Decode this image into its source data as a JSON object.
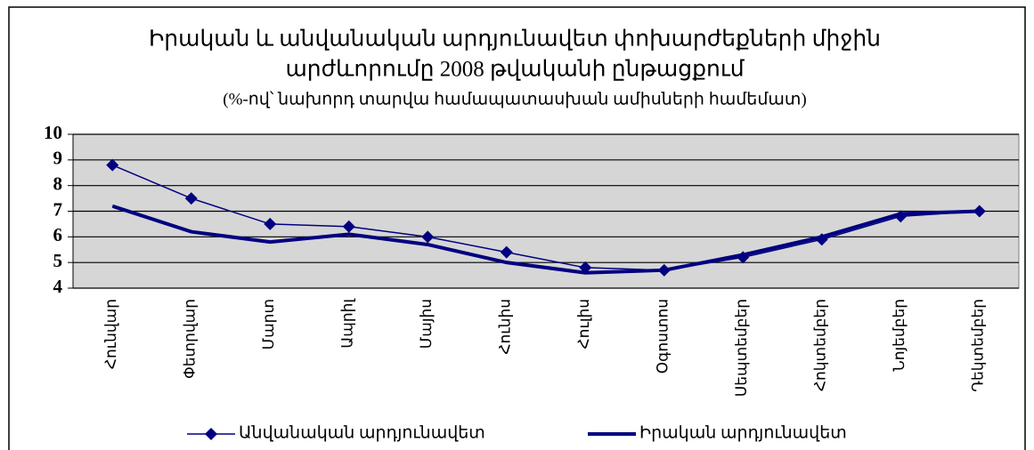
{
  "chart_data": {
    "type": "line",
    "title": [
      "Իրական և անվանական արդյունավետ փոխարժեքների միջին",
      "արժևորումը 2008 թվականի ընթացքում"
    ],
    "subtitle": "(%-ով՝ նախորդ տարվա համապատասխան ամիսների համեմատ)",
    "categories": [
      "Հունվար",
      "Փետրվար",
      "Մարտ",
      "Ապրիլ",
      "Մայիս",
      "Հունիս",
      "Հուլիս",
      "Օգոստոս",
      "Սեպտեմբեր",
      "Հոկտեմբեր",
      "Նոյեմբեր",
      "Դեկտեմբեր"
    ],
    "series": [
      {
        "name": "Անվանական արդյունավետ",
        "color": "#000080",
        "values": [
          8.8,
          7.5,
          6.5,
          6.4,
          6.0,
          5.4,
          4.8,
          4.7,
          5.2,
          5.9,
          6.8,
          7.0
        ]
      },
      {
        "name": "Իրական արդյունավետ",
        "color": "#000080",
        "values": [
          7.2,
          6.2,
          5.8,
          6.1,
          5.7,
          5.0,
          4.6,
          4.7,
          5.3,
          6.0,
          6.9,
          7.0
        ]
      }
    ],
    "ylim": [
      4,
      10
    ],
    "yticks": [
      4,
      5,
      6,
      7,
      8,
      9,
      10
    ],
    "grid": true,
    "legend": "bottom"
  }
}
